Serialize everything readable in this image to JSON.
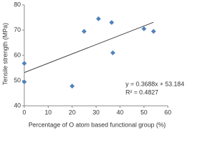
{
  "chart_data": {
    "type": "scatter",
    "x_label": "Percentage of O atom based functional group (%)",
    "y_label": "Tensile strength (MPa)",
    "series": [
      {
        "name": "Tensile strength",
        "color": "#4f81bd",
        "x": [
          0,
          0,
          20,
          25,
          31,
          36.5,
          37,
          50,
          54
        ],
        "values": [
          56.8,
          49.5,
          47.8,
          69.5,
          74.5,
          73,
          61,
          70.5,
          69.5
        ]
      }
    ],
    "trendline": {
      "slope": 0.3688,
      "intercept": 53.184,
      "color": "#404040",
      "equation": "y = 0.3688x + 53.184",
      "r_squared": "R² = 0.4827"
    },
    "xlim": [
      0,
      60
    ],
    "xticks": [
      0,
      10,
      20,
      30,
      40,
      50,
      60
    ],
    "ylim": [
      40,
      80
    ],
    "yticks": [
      40,
      50,
      60,
      70,
      80
    ],
    "grid": false
  }
}
